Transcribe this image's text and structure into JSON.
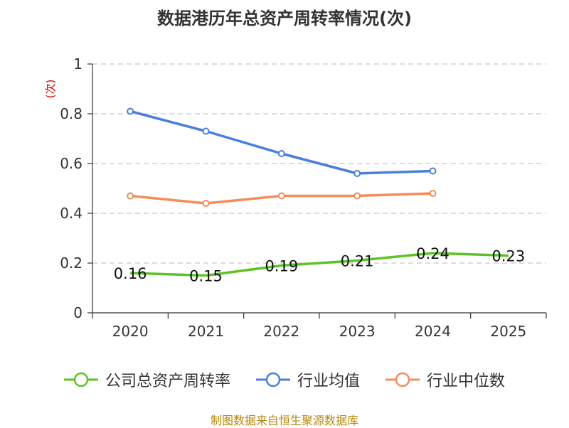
{
  "chart_data": {
    "type": "line",
    "title": "数据港历年总资产周转率情况(次)",
    "ylabel": "(次)",
    "xlabel": "",
    "categories": [
      "2020",
      "2021",
      "2022",
      "2023",
      "2024",
      "2025"
    ],
    "ylim": [
      0,
      1
    ],
    "yticks": [
      0,
      0.2,
      0.4,
      0.6,
      0.8,
      1
    ],
    "ytick_labels": [
      "0",
      "0.2",
      "0.4",
      "0.6",
      "0.8",
      "1"
    ],
    "grid": true,
    "series": [
      {
        "name": "公司总资产周转率",
        "color": "#5bc424",
        "values": [
          0.16,
          0.15,
          0.19,
          0.21,
          0.24,
          0.23
        ],
        "labels": [
          "0.16",
          "0.15",
          "0.19",
          "0.21",
          "0.24",
          "0.23"
        ]
      },
      {
        "name": "行业均值",
        "color": "#4a7fdc",
        "values": [
          0.81,
          0.73,
          0.64,
          0.56,
          0.57,
          null
        ]
      },
      {
        "name": "行业中位数",
        "color": "#f58c5a",
        "values": [
          0.47,
          0.44,
          0.47,
          0.47,
          0.48,
          null
        ]
      }
    ]
  },
  "source": "制图数据来自恒生聚源数据库"
}
